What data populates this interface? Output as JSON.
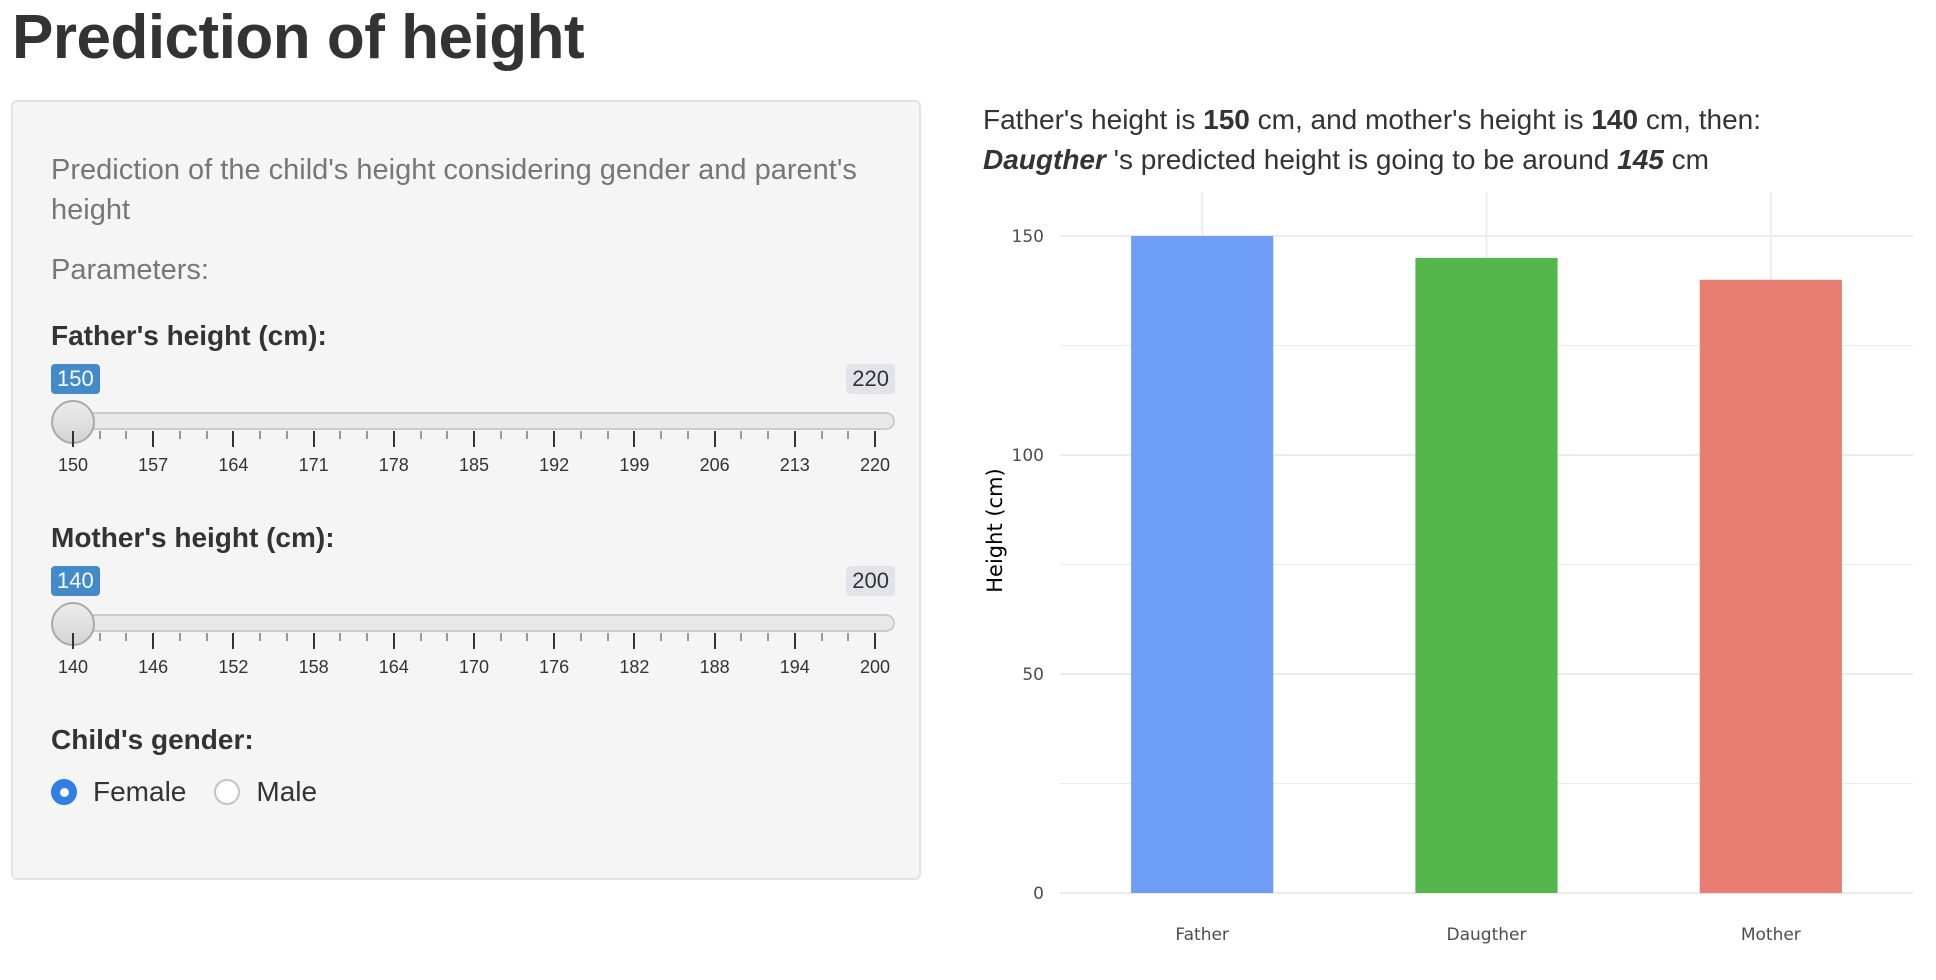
{
  "page_title": "Prediction of height",
  "sidebar": {
    "description": "Prediction of the child's height considering gender and parent's height",
    "parameters_label": "Parameters:",
    "father_slider": {
      "label": "Father's height (cm):",
      "value": "150",
      "min": "150",
      "max": "220",
      "ticks": [
        "150",
        "157",
        "164",
        "171",
        "178",
        "185",
        "192",
        "199",
        "206",
        "213",
        "220"
      ]
    },
    "mother_slider": {
      "label": "Mother's height (cm):",
      "value": "140",
      "min": "140",
      "max": "200",
      "ticks": [
        "140",
        "146",
        "152",
        "158",
        "164",
        "170",
        "176",
        "182",
        "188",
        "194",
        "200"
      ]
    },
    "gender": {
      "label": "Child's gender:",
      "options": [
        "Female",
        "Male"
      ],
      "selected": "Female"
    }
  },
  "summary": {
    "line1_prefix": "Father's height is ",
    "father_value": "150",
    "line1_mid": " cm, and mother's height is ",
    "mother_value": "140",
    "line1_suffix": " cm, then:",
    "child_label": "Daugther",
    "line2_mid": " 's predicted height is going to be around ",
    "predicted_value": "145",
    "line2_suffix": " cm"
  },
  "chart_data": {
    "type": "bar",
    "categories": [
      "Father",
      "Daugther",
      "Mother"
    ],
    "values": [
      150,
      145,
      140
    ],
    "colors": [
      "#6f9ef8",
      "#54b74b",
      "#e97d72"
    ],
    "ylabel": "Height (cm)",
    "xlabel": "",
    "ylim": [
      0,
      150
    ],
    "yticks": [
      0,
      50,
      100,
      150
    ],
    "grid": true
  }
}
